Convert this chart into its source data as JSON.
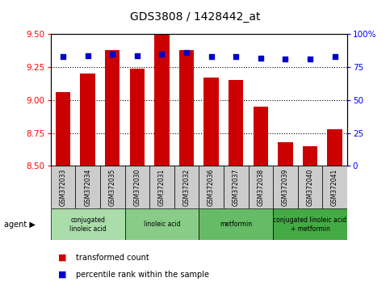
{
  "title": "GDS3808 / 1428442_at",
  "categories": [
    "GSM372033",
    "GSM372034",
    "GSM372035",
    "GSM372030",
    "GSM372031",
    "GSM372032",
    "GSM372036",
    "GSM372037",
    "GSM372038",
    "GSM372039",
    "GSM372040",
    "GSM372041"
  ],
  "bar_values": [
    9.06,
    9.2,
    9.38,
    9.24,
    9.5,
    9.38,
    9.17,
    9.15,
    8.95,
    8.68,
    8.65,
    8.78
  ],
  "percentile_values": [
    83,
    84,
    85,
    84,
    85,
    86,
    83,
    83,
    82,
    81,
    81,
    83
  ],
  "bar_bottom": 8.5,
  "ylim": [
    8.5,
    9.5
  ],
  "y2lim": [
    0,
    100
  ],
  "y_ticks": [
    8.5,
    8.75,
    9.0,
    9.25,
    9.5
  ],
  "y2_ticks": [
    0,
    25,
    50,
    75,
    100
  ],
  "bar_color": "#cc0000",
  "dot_color": "#0000cc",
  "agent_groups": [
    {
      "label": "conjugated\nlinoleic acid",
      "start": 0,
      "end": 3,
      "color": "#aaddaa"
    },
    {
      "label": "linoleic acid",
      "start": 3,
      "end": 6,
      "color": "#88cc88"
    },
    {
      "label": "metformin",
      "start": 6,
      "end": 9,
      "color": "#66bb66"
    },
    {
      "label": "conjugated linoleic acid\n+ metformin",
      "start": 9,
      "end": 12,
      "color": "#44aa44"
    }
  ],
  "legend_bar_label": "transformed count",
  "legend_dot_label": "percentile rank within the sample",
  "agent_label": "agent",
  "grid_color": "#000000",
  "bg_color": "#ffffff",
  "sample_bg": "#cccccc",
  "agent_group_colors": [
    "#aaddaa",
    "#88cc88",
    "#66bb66",
    "#44aa44"
  ]
}
